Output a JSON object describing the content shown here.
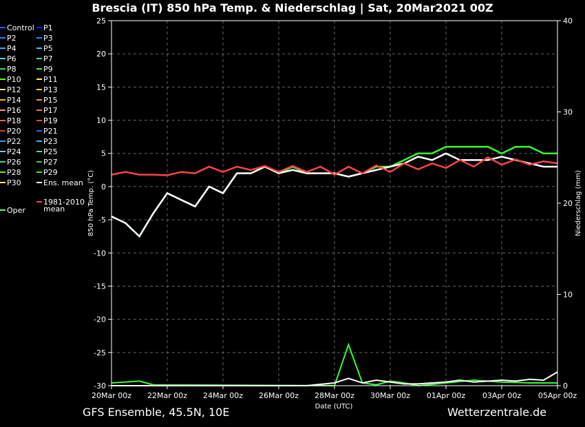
{
  "footer": {
    "left": "GFS Ensemble, 45.5N, 10E",
    "right": "Wetterzentrale.de"
  },
  "chart_data": {
    "type": "line",
    "title": "Brescia  (IT)  850 hPa Temp. & Niederschlag | Sat, 20Mar2021 00Z",
    "xlabel": "Date (UTC)",
    "ylabel": "850 hPa Temp. (°C)",
    "y2label": "Niederschlag (mm)",
    "ylim": [
      -30,
      25
    ],
    "y2lim": [
      0,
      40
    ],
    "yticks": [
      25,
      20,
      15,
      10,
      5,
      0,
      -5,
      -10,
      -15,
      -20,
      -25,
      -30
    ],
    "y2ticks": [
      40,
      30,
      20,
      10,
      0
    ],
    "xlim": [
      0,
      16
    ],
    "xticks": [
      0,
      2,
      4,
      6,
      8,
      10,
      12,
      14,
      16
    ],
    "xtick_labels": [
      "20Mar 00z",
      "22Mar 00z",
      "24Mar 00z",
      "26Mar 00z",
      "28Mar 00z",
      "30Mar 00z",
      "01Apr 00z",
      "03Apr 00z",
      "05Apr 00z"
    ],
    "grid": true,
    "legend_position": "left",
    "legend": [
      {
        "name": "Control",
        "color": "#2a5cff"
      },
      {
        "name": "P1",
        "color": "#1a1aff"
      },
      {
        "name": "P2",
        "color": "#3380ff"
      },
      {
        "name": "P3",
        "color": "#1a8cff"
      },
      {
        "name": "P4",
        "color": "#33aaff"
      },
      {
        "name": "P5",
        "color": "#33ccff"
      },
      {
        "name": "P6",
        "color": "#33e0cc"
      },
      {
        "name": "P7",
        "color": "#33e099"
      },
      {
        "name": "P8",
        "color": "#33e066"
      },
      {
        "name": "P9",
        "color": "#33ff33"
      },
      {
        "name": "P10",
        "color": "#66ff00"
      },
      {
        "name": "P11",
        "color": "#ffff33"
      },
      {
        "name": "P12",
        "color": "#ffe680"
      },
      {
        "name": "P13",
        "color": "#ffcc33"
      },
      {
        "name": "P14",
        "color": "#ffb833"
      },
      {
        "name": "P15",
        "color": "#ff9933"
      },
      {
        "name": "P16",
        "color": "#ff9966"
      },
      {
        "name": "P17",
        "color": "#ff7733"
      },
      {
        "name": "P18",
        "color": "#ff6633"
      },
      {
        "name": "P19",
        "color": "#e64d33"
      },
      {
        "name": "P20",
        "color": "#e63333"
      },
      {
        "name": "P21",
        "color": "#3366ff"
      },
      {
        "name": "P22",
        "color": "#3399ff"
      },
      {
        "name": "P23",
        "color": "#33bbff"
      },
      {
        "name": "P24",
        "color": "#66ccff"
      },
      {
        "name": "P25",
        "color": "#33ee99"
      },
      {
        "name": "P26",
        "color": "#33dd88"
      },
      {
        "name": "P27",
        "color": "#33cc66"
      },
      {
        "name": "P28",
        "color": "#66ee33"
      },
      {
        "name": "P29",
        "color": "#33ff00"
      },
      {
        "name": "P30",
        "color": "#ffff66"
      },
      {
        "name": "Ens. mean",
        "color": "#ffffff"
      },
      {
        "name": "Oper",
        "color": "#66ff66"
      },
      {
        "name": "1981-2010 mean",
        "color": "#ff4444"
      }
    ],
    "series": [
      {
        "name": "Oper",
        "color": "#33ff33",
        "width": 2.5,
        "x": [
          0,
          0.5,
          1,
          1.5,
          2,
          2.5,
          3,
          3.5,
          4,
          4.5,
          5,
          5.5,
          6,
          6.5,
          7,
          7.5,
          8,
          8.5,
          9,
          9.5,
          10,
          10.5,
          11,
          11.5,
          12,
          12.5,
          13,
          13.5,
          14,
          14.5,
          15,
          15.5,
          16
        ],
        "y": [
          -4.5,
          -5.5,
          -7.5,
          -4,
          -1,
          -2,
          -3,
          0,
          -1,
          2,
          2,
          3,
          2,
          3,
          2,
          2,
          2,
          1.5,
          2,
          3,
          3,
          4,
          5,
          5,
          6,
          6,
          6,
          6,
          5,
          6,
          6,
          5,
          5
        ]
      },
      {
        "name": "Ens. mean",
        "color": "#ffffff",
        "width": 2.5,
        "x": [
          0,
          0.5,
          1,
          1.5,
          2,
          2.5,
          3,
          3.5,
          4,
          4.5,
          5,
          5.5,
          6,
          6.5,
          7,
          7.5,
          8,
          8.5,
          9,
          9.5,
          10,
          10.5,
          11,
          11.5,
          12,
          12.5,
          13,
          13.5,
          14,
          14.5,
          15,
          15.5,
          16
        ],
        "y": [
          -4.5,
          -5.5,
          -7.5,
          -4,
          -1,
          -2,
          -3,
          0,
          -1,
          2,
          2,
          3,
          2,
          2.5,
          2,
          2,
          2,
          1.5,
          2,
          2.5,
          3,
          3.5,
          4.5,
          4,
          5,
          4,
          4,
          4,
          4.5,
          4,
          3.5,
          3,
          3
        ]
      },
      {
        "name": "1981-2010 mean",
        "color": "#ff4444",
        "width": 2.5,
        "x": [
          0,
          0.5,
          1,
          1.5,
          2,
          2.5,
          3,
          3.5,
          4,
          4.5,
          5,
          5.5,
          6,
          6.5,
          7,
          7.5,
          8,
          8.5,
          9,
          9.5,
          10,
          10.5,
          11,
          11.5,
          12,
          12.5,
          13,
          13.5,
          14,
          14.5,
          15,
          15.5,
          16
        ],
        "y": [
          1.8,
          2.2,
          1.8,
          1.8,
          1.7,
          2.2,
          2,
          3,
          2.2,
          3,
          2.5,
          3.1,
          2.2,
          3.1,
          2.2,
          3,
          1.8,
          3,
          2,
          3.2,
          2.2,
          3.5,
          2.6,
          3.5,
          2.8,
          4,
          3,
          4.4,
          3.3,
          4.1,
          3.3,
          3.8,
          3.5
        ]
      }
    ],
    "precipitation": [
      {
        "name": "Oper",
        "color": "#33ff33",
        "x": [
          0,
          1,
          1.5,
          8,
          8.5,
          9,
          9.5,
          10,
          10.5,
          11,
          12,
          13,
          14,
          15,
          16
        ],
        "y": [
          0.3,
          0.5,
          0.1,
          0,
          4.5,
          0.3,
          0.1,
          0.5,
          0.3,
          0,
          0.3,
          0.6,
          0.4,
          0.3,
          0.3
        ]
      },
      {
        "name": "Ens. mean",
        "color": "#ffffff",
        "x": [
          0,
          1,
          2,
          7,
          8,
          8.5,
          9,
          9.5,
          10,
          10.5,
          11,
          11.5,
          12,
          12.5,
          13,
          13.5,
          14,
          14.5,
          15,
          15.5,
          16
        ],
        "y": [
          0,
          0,
          0,
          0,
          0.3,
          0.8,
          0.3,
          0.6,
          0.4,
          0.2,
          0.2,
          0.3,
          0.4,
          0.6,
          0.4,
          0.5,
          0.6,
          0.5,
          0.7,
          0.6,
          1.5
        ]
      }
    ]
  }
}
